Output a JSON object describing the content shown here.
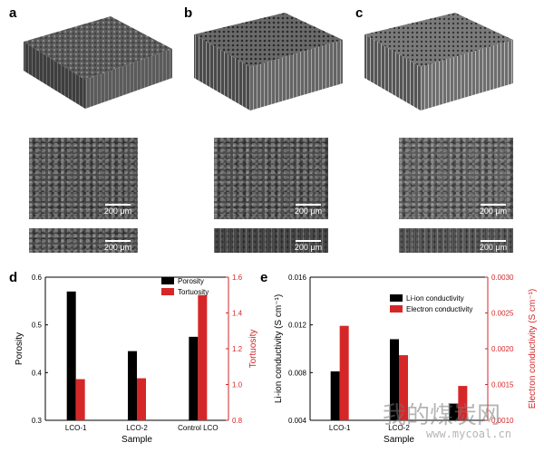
{
  "panels": {
    "a": "a",
    "b": "b",
    "c": "c",
    "d": "d",
    "e": "e"
  },
  "scale_bar_label": "200 μm",
  "chart_data": [
    {
      "type": "bar",
      "panel": "d",
      "categories": [
        "LCO-1",
        "LCO-2",
        "Control LCO"
      ],
      "xlabel": "Sample",
      "series": [
        {
          "name": "Porosity",
          "axis": "left",
          "color": "#000000",
          "values": [
            0.57,
            0.445,
            0.475
          ]
        },
        {
          "name": "Tortuosity",
          "axis": "right",
          "color": "#d62728",
          "values": [
            1.03,
            1.035,
            1.5
          ]
        }
      ],
      "left_axis": {
        "label": "Porosity",
        "ylim": [
          0.3,
          0.6
        ],
        "ticks": [
          "0.3",
          "0.4",
          "0.5",
          "0.6"
        ]
      },
      "right_axis": {
        "label": "Tortuosity",
        "ylim": [
          0.8,
          1.6
        ],
        "ticks": [
          "0.8",
          "1.0",
          "1.2",
          "1.4",
          "1.6"
        ],
        "color": "#d62728"
      },
      "legend": "top-right"
    },
    {
      "type": "bar",
      "panel": "e",
      "categories": [
        "LCO-1",
        "LCO-2",
        ""
      ],
      "xlabel": "Sample",
      "series": [
        {
          "name": "Li-ion conductivity",
          "axis": "left",
          "color": "#000000",
          "values": [
            0.0081,
            0.0108,
            0.0054
          ]
        },
        {
          "name": "Electron conductivity",
          "axis": "right",
          "color": "#d62728",
          "values": [
            0.00232,
            0.00191,
            0.00148
          ]
        }
      ],
      "left_axis": {
        "label": "Li-ion conductivity (S cm⁻¹)",
        "ylim": [
          0.004,
          0.016
        ],
        "ticks": [
          "0.004",
          "0.008",
          "0.012",
          "0.016"
        ]
      },
      "right_axis": {
        "label": "Electron conductivity (S cm⁻¹)",
        "ylim": [
          0.001,
          0.003
        ],
        "ticks": [
          "0.0010",
          "0.0015",
          "0.0020",
          "0.0025",
          "0.0030"
        ],
        "color": "#d62728"
      },
      "legend": "top-right"
    }
  ],
  "watermark": {
    "cn": "我的煤炭网",
    "url": "www.mycoal.cn"
  }
}
